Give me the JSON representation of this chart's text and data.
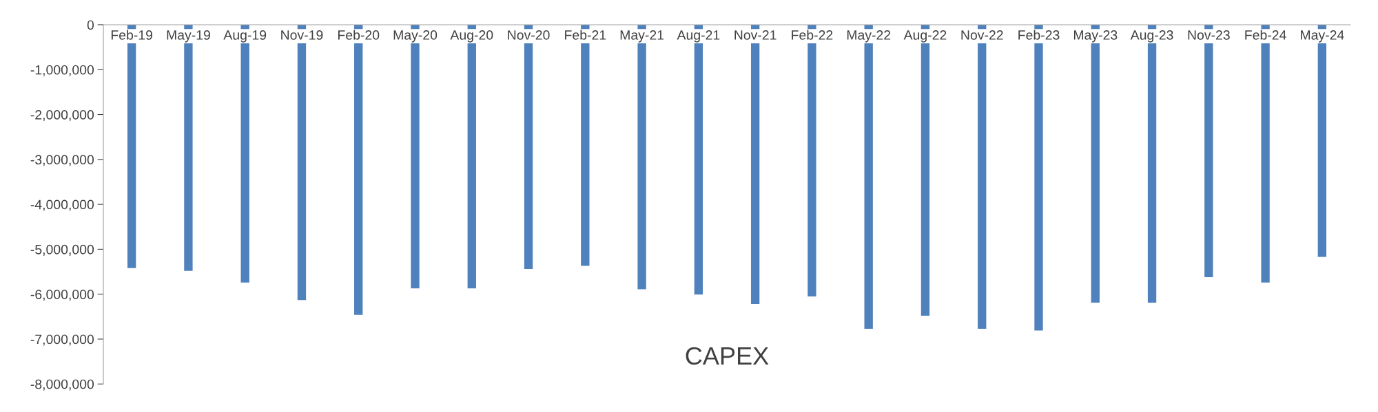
{
  "chart_data": {
    "type": "bar",
    "title": "CAPEX",
    "categories": [
      "Feb-19",
      "May-19",
      "Aug-19",
      "Nov-19",
      "Feb-20",
      "May-20",
      "Aug-20",
      "Nov-20",
      "Feb-21",
      "May-21",
      "Aug-21",
      "Nov-21",
      "Feb-22",
      "May-22",
      "Aug-22",
      "Nov-22",
      "Feb-23",
      "May-23",
      "Aug-23",
      "Nov-23",
      "Feb-24",
      "May-24"
    ],
    "values": [
      -5420000,
      -5480000,
      -5740000,
      -6130000,
      -6460000,
      -5870000,
      -5870000,
      -5440000,
      -5370000,
      -5890000,
      -6010000,
      -6220000,
      -6050000,
      -6770000,
      -6480000,
      -6770000,
      -6810000,
      -6190000,
      -6190000,
      -5620000,
      -5740000,
      -5170000
    ],
    "color": "#4f81bd",
    "ylim": [
      -8000000,
      0
    ],
    "yticks": [
      {
        "value": -8000000,
        "label": "-8,000,000"
      },
      {
        "value": -7000000,
        "label": "-7,000,000"
      },
      {
        "value": -6000000,
        "label": "-6,000,000"
      },
      {
        "value": -5000000,
        "label": "-5,000,000"
      },
      {
        "value": -4000000,
        "label": "-4,000,000"
      },
      {
        "value": -3000000,
        "label": "-3,000,000"
      },
      {
        "value": -2000000,
        "label": "-2,000,000"
      },
      {
        "value": -1000000,
        "label": "-1,000,000"
      },
      {
        "value": 0,
        "label": "0"
      }
    ],
    "grid": false
  }
}
